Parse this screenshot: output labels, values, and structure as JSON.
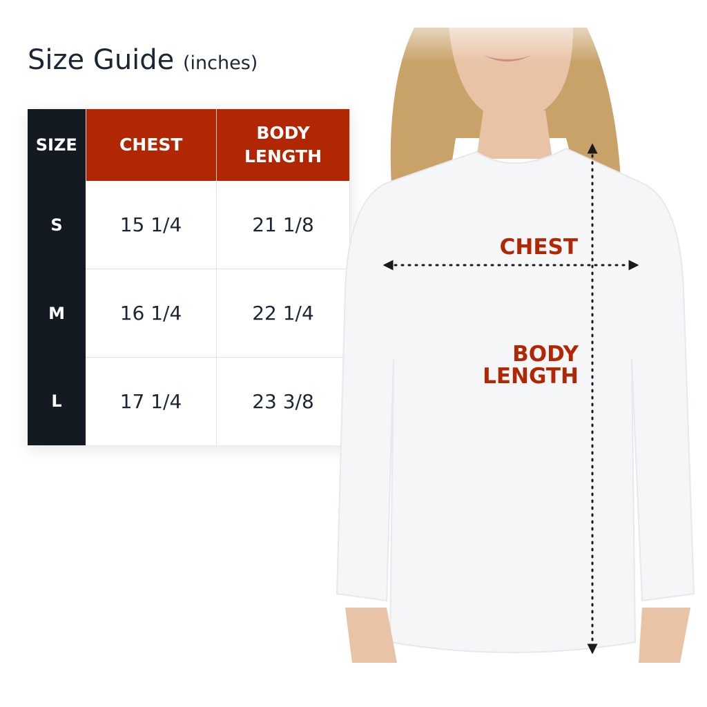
{
  "title": {
    "main": "Size Guide",
    "unit": "(inches)"
  },
  "table": {
    "headers": [
      "SIZE",
      "CHEST",
      "BODY LENGTH"
    ],
    "rows": [
      {
        "size": "S",
        "chest": "15 1/4",
        "body_length": "21 1/8"
      },
      {
        "size": "M",
        "chest": "16 1/4",
        "body_length": "22 1/4"
      },
      {
        "size": "L",
        "chest": "17 1/4",
        "body_length": "23 3/8"
      }
    ]
  },
  "diagram": {
    "chest_label": "CHEST",
    "body_length_label": "BODY LENGTH"
  },
  "colors": {
    "accent": "#b12704",
    "dark": "#131a22",
    "text": "#1c2633"
  }
}
